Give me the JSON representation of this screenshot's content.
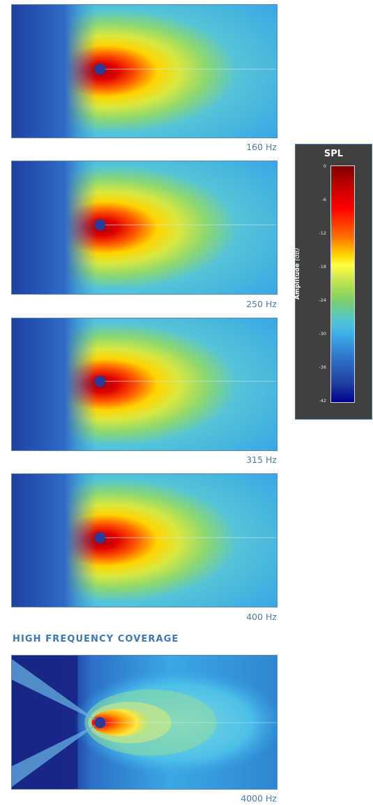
{
  "plots": [
    {
      "frequency": "160 Hz"
    },
    {
      "frequency": "250 Hz"
    },
    {
      "frequency": "315 Hz"
    },
    {
      "frequency": "400 Hz"
    },
    {
      "frequency": "4000 Hz"
    }
  ],
  "section_title": "HIGH FREQUENCY COVERAGE",
  "colorbar": {
    "title": "SPL",
    "axis_label": "Amplitude",
    "axis_unit": "(dB)",
    "ticks": [
      "0",
      "-6",
      "-12",
      "-18",
      "-24",
      "-30",
      "-36",
      "-42"
    ]
  }
}
